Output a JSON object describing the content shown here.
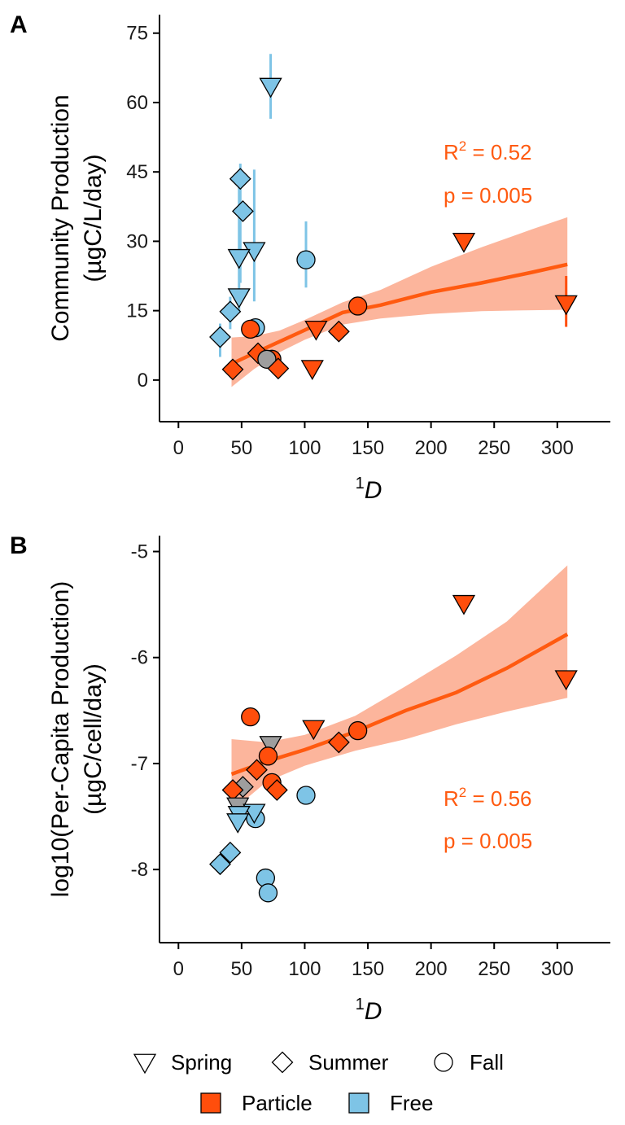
{
  "colors": {
    "particle": "#FF4E0C",
    "free": "#7EC4E6",
    "ribbon": "#FBA283",
    "fit_line": "#FF5A10",
    "gray": "#9E9E9E",
    "stat": "#FF5A10"
  },
  "chart_data": [
    {
      "panel": "A",
      "type": "scatter",
      "xlabel": "D",
      "xlabel_superscript": "1",
      "ylabel_line1": "Community Production",
      "ylabel_line2": "(µgC/L/day)",
      "xlim": [
        -15,
        342
      ],
      "ylim": [
        -9,
        79
      ],
      "x_ticks": [
        0,
        50,
        100,
        150,
        200,
        250,
        300
      ],
      "y_ticks": [
        0,
        15,
        30,
        45,
        60,
        75
      ],
      "y_tick_labels": [
        "0",
        "15",
        "30",
        "45",
        "60",
        "75"
      ],
      "grid": false,
      "stats": {
        "r2_prefix": "R",
        "r2_sup": "2",
        "r2_value": " = 0.52",
        "p_text": "p = 0.005"
      },
      "fit": {
        "x": [
          42,
          60,
          80,
          100,
          130,
          160,
          200,
          240,
          280,
          308
        ],
        "y": [
          3.5,
          5.8,
          8.3,
          10.8,
          14.6,
          16.2,
          19.0,
          21.0,
          23.3,
          25.0
        ],
        "lo": [
          -1.5,
          2.4,
          6.0,
          8.7,
          12.0,
          13.3,
          14.3,
          14.9,
          15.1,
          15.2
        ],
        "hi": [
          9.2,
          9.5,
          10.7,
          13.0,
          16.8,
          19.5,
          24.5,
          28.7,
          32.6,
          35.2
        ]
      },
      "points": [
        {
          "x": 73,
          "y": 63.5,
          "season": "Spring",
          "fraction": "Free",
          "err": [
            56.5,
            70.5
          ]
        },
        {
          "x": 49,
          "y": 43.5,
          "season": "Summer",
          "fraction": "Free",
          "err": [
            21,
            46.8
          ]
        },
        {
          "x": 51,
          "y": 36.5,
          "season": "Summer",
          "fraction": "Free"
        },
        {
          "x": 60,
          "y": 28,
          "season": "Spring",
          "fraction": "Free",
          "err": [
            17,
            45.5
          ]
        },
        {
          "x": 48,
          "y": 26.5,
          "season": "Spring",
          "fraction": "Free",
          "err": [
            15,
            45
          ]
        },
        {
          "x": 101,
          "y": 26,
          "season": "Fall",
          "fraction": "Free",
          "err": [
            20,
            34.3
          ]
        },
        {
          "x": 48,
          "y": 18,
          "season": "Spring",
          "fraction": "Free"
        },
        {
          "x": 41,
          "y": 14.8,
          "season": "Summer",
          "fraction": "Free",
          "err": [
            11,
            18
          ]
        },
        {
          "x": 33,
          "y": 9.3,
          "season": "Summer",
          "fraction": "Free",
          "err": [
            5,
            12.2
          ]
        },
        {
          "x": 61,
          "y": 11.3,
          "season": "Fall",
          "fraction": "Free"
        },
        {
          "x": 142,
          "y": 16,
          "season": "Fall",
          "fraction": "Particle"
        },
        {
          "x": 57,
          "y": 11,
          "season": "Fall",
          "fraction": "Particle"
        },
        {
          "x": 109,
          "y": 11,
          "season": "Spring",
          "fraction": "Particle"
        },
        {
          "x": 127,
          "y": 10.5,
          "season": "Summer",
          "fraction": "Particle"
        },
        {
          "x": 63,
          "y": 5.8,
          "season": "Summer",
          "fraction": "Particle"
        },
        {
          "x": 74,
          "y": 4.5,
          "season": "Fall",
          "fraction": "Particle"
        },
        {
          "x": 70,
          "y": 4.5,
          "season": "Fall",
          "fraction": "Free",
          "gray": true
        },
        {
          "x": 79,
          "y": 2.5,
          "season": "Summer",
          "fraction": "Particle"
        },
        {
          "x": 106,
          "y": 2.5,
          "season": "Spring",
          "fraction": "Particle"
        },
        {
          "x": 43,
          "y": 2.3,
          "season": "Summer",
          "fraction": "Particle"
        },
        {
          "x": 226,
          "y": 30,
          "season": "Spring",
          "fraction": "Particle"
        },
        {
          "x": 307,
          "y": 16.5,
          "season": "Spring",
          "fraction": "Particle",
          "err": [
            11.5,
            22.5
          ]
        }
      ]
    },
    {
      "panel": "B",
      "type": "scatter",
      "xlabel": "D",
      "xlabel_superscript": "1",
      "ylabel_line1": "log10(Per-Capita Production)",
      "ylabel_line2": "(µgC/cell/day)",
      "xlim": [
        -15,
        342
      ],
      "ylim": [
        -8.69,
        -4.85
      ],
      "x_ticks": [
        0,
        50,
        100,
        150,
        200,
        250,
        300
      ],
      "y_ticks": [
        -8,
        -7,
        -6,
        -5
      ],
      "y_tick_labels": [
        "-8",
        "-7",
        "-6",
        "-5"
      ],
      "grid": false,
      "stats": {
        "r2_prefix": "R",
        "r2_sup": "2",
        "r2_value": " = 0.56",
        "p_text": "p = 0.005"
      },
      "fit": {
        "x": [
          42,
          70,
          100,
          140,
          180,
          220,
          260,
          308
        ],
        "y": [
          -7.1,
          -6.98,
          -6.87,
          -6.7,
          -6.5,
          -6.33,
          -6.1,
          -5.78
        ],
        "lo": [
          -7.45,
          -7.17,
          -7.02,
          -6.88,
          -6.77,
          -6.63,
          -6.51,
          -6.38
        ],
        "hi": [
          -6.77,
          -6.8,
          -6.73,
          -6.55,
          -6.27,
          -5.98,
          -5.66,
          -5.13
        ]
      },
      "points": [
        {
          "x": 226,
          "y": -5.49,
          "season": "Spring",
          "fraction": "Particle"
        },
        {
          "x": 307,
          "y": -6.2,
          "season": "Spring",
          "fraction": "Particle"
        },
        {
          "x": 57,
          "y": -6.56,
          "season": "Fall",
          "fraction": "Particle"
        },
        {
          "x": 107,
          "y": -6.67,
          "season": "Spring",
          "fraction": "Particle"
        },
        {
          "x": 142,
          "y": -6.69,
          "season": "Fall",
          "fraction": "Particle"
        },
        {
          "x": 73,
          "y": -6.82,
          "season": "Spring",
          "fraction": "Free",
          "gray": true
        },
        {
          "x": 127,
          "y": -6.8,
          "season": "Summer",
          "fraction": "Particle"
        },
        {
          "x": 71,
          "y": -6.93,
          "season": "Fall",
          "fraction": "Particle"
        },
        {
          "x": 62,
          "y": -7.06,
          "season": "Summer",
          "fraction": "Particle"
        },
        {
          "x": 74,
          "y": -7.18,
          "season": "Fall",
          "fraction": "Particle"
        },
        {
          "x": 78,
          "y": -7.25,
          "season": "Summer",
          "fraction": "Particle"
        },
        {
          "x": 51,
          "y": -7.22,
          "season": "Summer",
          "fraction": "Free",
          "gray": true
        },
        {
          "x": 43,
          "y": -7.25,
          "season": "Summer",
          "fraction": "Particle"
        },
        {
          "x": 101,
          "y": -7.3,
          "season": "Fall",
          "fraction": "Free"
        },
        {
          "x": 47,
          "y": -7.4,
          "season": "Spring",
          "fraction": "Free",
          "gray": true
        },
        {
          "x": 61,
          "y": -7.52,
          "season": "Fall",
          "fraction": "Free"
        },
        {
          "x": 60,
          "y": -7.46,
          "season": "Spring",
          "fraction": "Free"
        },
        {
          "x": 48,
          "y": -7.48,
          "season": "Spring",
          "fraction": "Free"
        },
        {
          "x": 47,
          "y": -7.55,
          "season": "Spring",
          "fraction": "Free"
        },
        {
          "x": 41,
          "y": -7.84,
          "season": "Summer",
          "fraction": "Free"
        },
        {
          "x": 33,
          "y": -7.95,
          "season": "Summer",
          "fraction": "Free"
        },
        {
          "x": 69,
          "y": -8.08,
          "season": "Fall",
          "fraction": "Free"
        },
        {
          "x": 71,
          "y": -8.22,
          "season": "Fall",
          "fraction": "Free"
        }
      ]
    }
  ],
  "legend": {
    "shapes": [
      {
        "shape": "triangle",
        "label": "Spring"
      },
      {
        "shape": "diamond",
        "label": "Summer"
      },
      {
        "shape": "circle",
        "label": "Fall"
      }
    ],
    "fills": [
      {
        "key": "particle",
        "label": "Particle"
      },
      {
        "key": "free",
        "label": "Free"
      }
    ],
    "position": "bottom"
  }
}
